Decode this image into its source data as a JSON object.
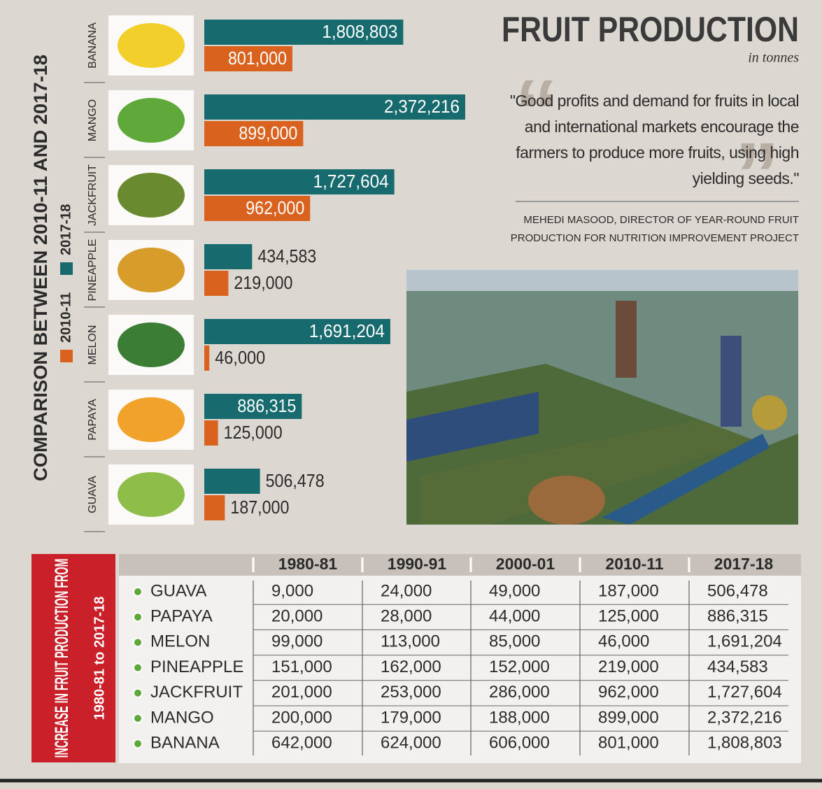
{
  "header": {
    "title": "FRUIT PRODUCTION",
    "subtitle": "in tonnes"
  },
  "quote": {
    "text": "\"Good profits and demand for fruits in local and international markets encourage the farmers to produce more fruits, using high yielding seeds.\"",
    "attribution": "MEHEDI MASOOD, DIRECTOR OF YEAR-ROUND FRUIT PRODUCTION FOR NUTRITION IMPROVEMENT PROJECT"
  },
  "chart_data": {
    "type": "bar",
    "orientation": "horizontal",
    "title": "COMPARISON BETWEEN 2010-11 AND 2017-18",
    "categories": [
      "BANANA",
      "MANGO",
      "JACKFRUIT",
      "PINEAPPLE",
      "MELON",
      "PAPAYA",
      "GUAVA"
    ],
    "series": [
      {
        "name": "2010-11",
        "color": "#d9631e",
        "values": [
          801000,
          899000,
          962000,
          219000,
          46000,
          125000,
          187000
        ],
        "value_labels": [
          "801,000",
          "899,000",
          "962,000",
          "219,000",
          "46,000",
          "125,000",
          "187,000"
        ]
      },
      {
        "name": "2017-18",
        "color": "#176a6e",
        "values": [
          1808803,
          2372216,
          1727604,
          434583,
          1691204,
          886315,
          506478
        ],
        "value_labels": [
          "1,808,803",
          "2,372,216",
          "1,727,604",
          "434,583",
          "1,691,204",
          "886,315",
          "506,478"
        ]
      }
    ]
  },
  "table": {
    "title": "INCREASE IN FRUIT PRODUCTION FROM",
    "subtitle": "1980-81 to 2017-18",
    "columns": [
      "1980-81",
      "1990-91",
      "2000-01",
      "2010-11",
      "2017-18"
    ],
    "rows": [
      [
        "GUAVA",
        "9,000",
        "24,000",
        "49,000",
        "187,000",
        "506,478"
      ],
      [
        "PAPAYA",
        "20,000",
        "28,000",
        "44,000",
        "125,000",
        "886,315"
      ],
      [
        "MELON",
        "99,000",
        "113,000",
        "85,000",
        "46,000",
        "1,691,204"
      ],
      [
        "PINEAPPLE",
        "151,000",
        "162,000",
        "152,000",
        "219,000",
        "434,583"
      ],
      [
        "JACKFRUIT",
        "201,000",
        "253,000",
        "286,000",
        "962,000",
        "1,727,604"
      ],
      [
        "MANGO",
        "200,000",
        "179,000",
        "188,000",
        "899,000",
        "2,372,216"
      ],
      [
        "BANANA",
        "642,000",
        "624,000",
        "606,000",
        "801,000",
        "1,808,803"
      ]
    ]
  }
}
